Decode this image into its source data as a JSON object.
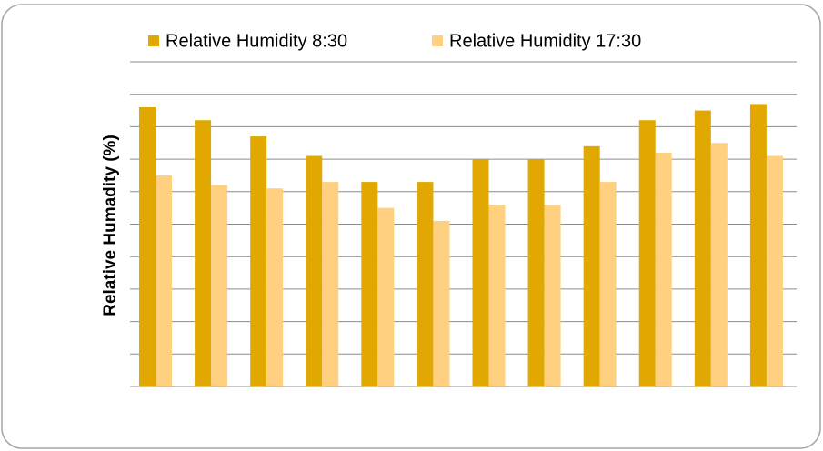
{
  "chart_data": {
    "type": "bar",
    "y_label": "Relative Humadity (%)",
    "categories": [
      null,
      null,
      null,
      null,
      null,
      null,
      null,
      null,
      null,
      null,
      null,
      null
    ],
    "series": [
      {
        "name": "Relative Humidity 8:30",
        "color": "#e0a800",
        "values": [
          86,
          82,
          77,
          71,
          63,
          63,
          70,
          70,
          74,
          82,
          85,
          87
        ]
      },
      {
        "name": "Relative Humidity 17:30",
        "color": "#ffd080",
        "values": [
          65,
          62,
          61,
          63,
          55,
          51,
          56,
          56,
          63,
          72,
          75,
          71
        ]
      }
    ],
    "ylim": [
      0,
      100
    ],
    "yticks": [
      0,
      10,
      20,
      30,
      40,
      50,
      60,
      70,
      80,
      90,
      100
    ],
    "grid": true
  }
}
